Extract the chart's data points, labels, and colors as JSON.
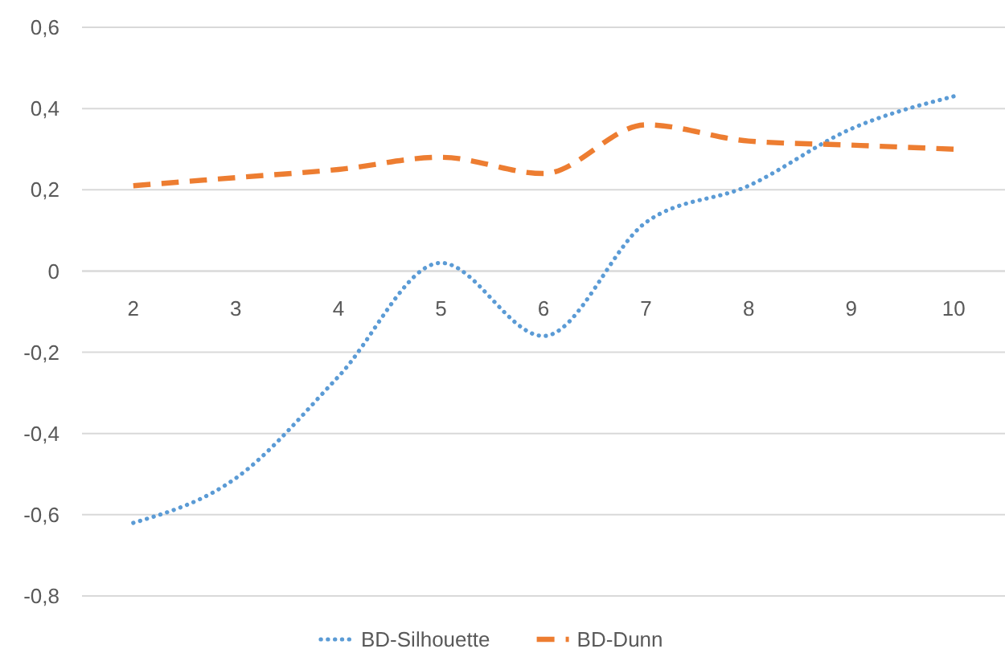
{
  "chart_data": {
    "type": "line",
    "categories": [
      "2",
      "3",
      "4",
      "5",
      "6",
      "7",
      "8",
      "9",
      "10"
    ],
    "series": [
      {
        "name": "BD-Silhouette",
        "color": "#5b9bd5",
        "line_style": "dotted",
        "values": [
          -0.62,
          -0.51,
          -0.26,
          0.02,
          -0.16,
          0.12,
          0.21,
          0.35,
          0.43
        ]
      },
      {
        "name": "BD-Dunn",
        "color": "#ed7d31",
        "line_style": "dashed",
        "values": [
          0.21,
          0.23,
          0.25,
          0.28,
          0.24,
          0.36,
          0.32,
          0.31,
          0.3
        ]
      }
    ],
    "ylim": [
      -0.8,
      0.6
    ],
    "yticks": [
      {
        "value": -0.8,
        "label": "-0,8"
      },
      {
        "value": -0.6,
        "label": "-0,6"
      },
      {
        "value": -0.4,
        "label": "-0,4"
      },
      {
        "value": -0.2,
        "label": "-0,2"
      },
      0,
      {
        "value": 0.2,
        "label": "0,2"
      },
      {
        "value": 0.4,
        "label": "0,4"
      },
      {
        "value": 0.6,
        "label": "0,6"
      }
    ],
    "grid": "y",
    "legend": "bottom"
  }
}
